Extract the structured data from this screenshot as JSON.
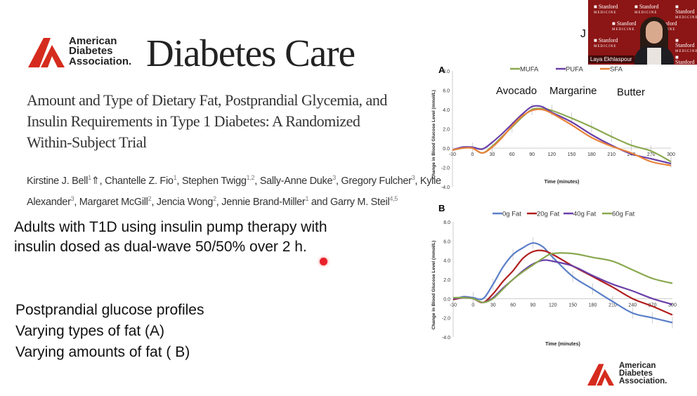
{
  "journal": {
    "org_logo": "American Diabetes Association.",
    "journal_name": "Diabetes Care"
  },
  "article": {
    "title_lines": [
      "Amount and Type of Dietary Fat, Postprandial Glycemia, and",
      "Insulin Requirements in Type 1 Diabetes: A Randomized",
      "Within-Subject Trial"
    ],
    "authors_line1": [
      {
        "name": "Kirstine J. Bell",
        "sup": "1",
        "sep": "⇑, "
      },
      {
        "name": "Chantelle Z. Fio",
        "sup": "1",
        "sep": ", "
      },
      {
        "name": "Stephen Twigg",
        "sup": "1,2",
        "sep": ", "
      },
      {
        "name": "Sally-Anne Duke",
        "sup": "3",
        "sep": ", "
      },
      {
        "name": "Gregory Fulcher",
        "sup": "3",
        "sep": ", Kylie"
      }
    ],
    "authors_line2": [
      {
        "name": "Alexander",
        "sup": "3",
        "sep": ", "
      },
      {
        "name": "Margaret McGill",
        "sup": "2",
        "sep": ", "
      },
      {
        "name": "Jencia Wong",
        "sup": "2",
        "sep": ", "
      },
      {
        "name": "Jennie Brand-Miller",
        "sup": "1",
        "sep": " and "
      },
      {
        "name": "Garry M. Steil",
        "sup": "4,5",
        "sep": ""
      }
    ]
  },
  "slide": {
    "method_lines": [
      "Adults with T1D using insulin pump therapy with",
      "insulin dosed as dual-wave 50/50% over 2 h."
    ],
    "bullets": [
      "Postprandial glucose profiles",
      "Varying types of fat (A)",
      "Varying amounts of fat ( B)"
    ],
    "fragment": "J",
    "footer_logo": "American Diabetes Association.",
    "laser_color": "#e8202a"
  },
  "video": {
    "participant_name": "Laya Ekhlaspour",
    "background_logo": "Stanford",
    "background_logo_sub": "MEDICINE"
  },
  "chart_data": [
    {
      "panel": "A",
      "type": "line",
      "xlabel": "Time (minutes)",
      "ylabel": "Change in Blood Glucose Level (mmol/L)",
      "xlim": [
        -30,
        300
      ],
      "ylim": [
        -4,
        8
      ],
      "xticks": [
        -30,
        0,
        30,
        60,
        90,
        120,
        150,
        180,
        210,
        240,
        270,
        300
      ],
      "yticks": [
        "8.0",
        "6.0",
        "4.0",
        "2.0",
        "0.0",
        "-2.0",
        "-4.0"
      ],
      "legend_position": "top",
      "annotations": [
        "Avocado",
        "Margarine",
        "Butter"
      ],
      "x": [
        -30,
        -15,
        0,
        15,
        30,
        45,
        60,
        75,
        90,
        105,
        120,
        150,
        180,
        210,
        240,
        270,
        300
      ],
      "series": [
        {
          "name": "MUFA",
          "color": "#8aa84f",
          "values": [
            -0.2,
            0,
            0,
            -0.5,
            0.2,
            1.2,
            2.2,
            3.2,
            4.0,
            4.1,
            3.9,
            3.1,
            2.2,
            1.2,
            0.3,
            -0.3,
            -1.4
          ]
        },
        {
          "name": "PUFA",
          "color": "#6a3fa8",
          "values": [
            -0.2,
            0.1,
            0.1,
            -0.1,
            0.6,
            1.5,
            2.5,
            3.5,
            4.3,
            4.3,
            3.7,
            2.7,
            1.4,
            0.3,
            -0.6,
            -1.1,
            -1.6
          ]
        },
        {
          "name": "SFA",
          "color": "#e8823a",
          "values": [
            -0.2,
            0,
            0,
            -0.5,
            0.1,
            1.1,
            2.3,
            3.3,
            3.9,
            4.0,
            3.6,
            2.4,
            1.1,
            0.2,
            -0.5,
            -1.4,
            -1.8
          ]
        }
      ]
    },
    {
      "panel": "B",
      "type": "line",
      "xlabel": "Time (minutes)",
      "ylabel": "Change in Blood Glucose Level (mmol/L)",
      "xlim": [
        -30,
        300
      ],
      "ylim": [
        -4,
        8
      ],
      "xticks": [
        -30,
        0,
        30,
        60,
        90,
        120,
        150,
        180,
        210,
        240,
        270,
        300
      ],
      "yticks": [
        "8.0",
        "6.0",
        "4.0",
        "2.0",
        "0.0",
        "-2.0",
        "-4.0"
      ],
      "legend_position": "top",
      "x": [
        -30,
        -15,
        0,
        15,
        30,
        45,
        60,
        75,
        90,
        105,
        120,
        150,
        180,
        210,
        240,
        270,
        300
      ],
      "series": [
        {
          "name": "0g Fat",
          "color": "#5b7fc8",
          "values": [
            -0.1,
            0.2,
            0.1,
            0,
            1.5,
            3.3,
            4.6,
            5.3,
            5.8,
            5.4,
            4.3,
            2.3,
            1.0,
            -0.3,
            -1.5,
            -2.0,
            -2.5
          ]
        },
        {
          "name": "20g Fat",
          "color": "#b01e1e",
          "values": [
            -0.1,
            0.1,
            0,
            -0.4,
            0.5,
            1.8,
            2.9,
            4.2,
            4.9,
            5.0,
            4.6,
            3.4,
            2.3,
            1.2,
            0,
            -0.8,
            -1.7
          ]
        },
        {
          "name": "40g Fat",
          "color": "#6a3fa8",
          "values": [
            0,
            0.1,
            0,
            -0.4,
            0.1,
            1.1,
            2.0,
            2.9,
            3.6,
            4.0,
            3.9,
            3.4,
            2.4,
            1.5,
            0.8,
            0,
            -0.6
          ]
        },
        {
          "name": "60g Fat",
          "color": "#8aa84f",
          "values": [
            0.1,
            0.1,
            0,
            -0.4,
            0,
            1.0,
            2.0,
            2.8,
            3.5,
            4.2,
            4.7,
            4.7,
            4.3,
            3.9,
            3.0,
            2.1,
            1.6
          ]
        }
      ]
    }
  ]
}
